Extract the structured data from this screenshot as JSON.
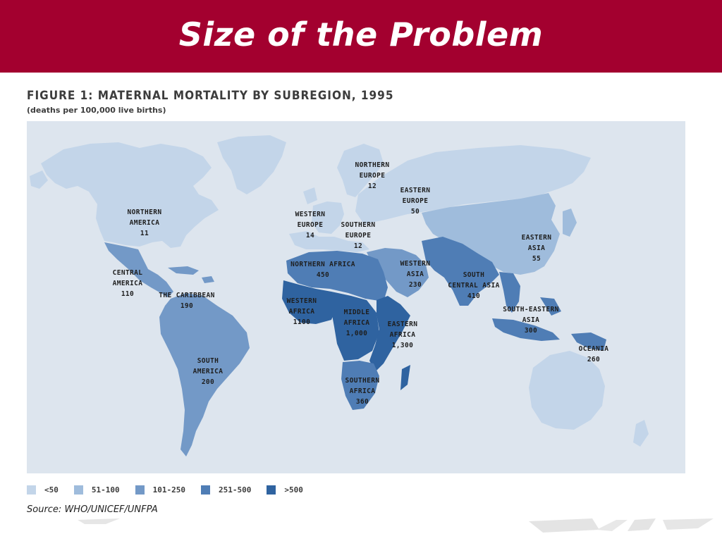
{
  "slide": {
    "title": "Size of the Problem"
  },
  "figure": {
    "title": "FIGURE 1: MATERNAL MORTALITY BY SUBREGION, 1995",
    "subtitle": "(deaths per 100,000 live births)",
    "source": "Source: WHO/UNICEF/UNFPA"
  },
  "colors": {
    "title_bar": "#a3002f",
    "ocean": "#dde5ee",
    "c1": "#c3d5e9",
    "c2": "#9fbcdc",
    "c3": "#7399c7",
    "c4": "#4f7db5",
    "c5": "#2f63a0"
  },
  "legend": [
    {
      "label": "<50",
      "color_key": "c1"
    },
    {
      "label": "51-100",
      "color_key": "c2"
    },
    {
      "label": "101-250",
      "color_key": "c3"
    },
    {
      "label": "251-500",
      "color_key": "c4"
    },
    {
      "label": ">500",
      "color_key": "c5"
    }
  ],
  "regions": [
    {
      "name": "NORTHERN AMERICA",
      "lines": [
        "NORTHERN",
        "AMERICA"
      ],
      "value": "11",
      "class": "c1"
    },
    {
      "name": "CENTRAL AMERICA",
      "lines": [
        "CENTRAL",
        "AMERICA"
      ],
      "value": "110",
      "class": "c3"
    },
    {
      "name": "THE CARIBBEAN",
      "lines": [
        "THE CARIBBEAN"
      ],
      "value": "190",
      "class": "c3"
    },
    {
      "name": "SOUTH AMERICA",
      "lines": [
        "SOUTH",
        "AMERICA"
      ],
      "value": "200",
      "class": "c3"
    },
    {
      "name": "NORTHERN EUROPE",
      "lines": [
        "NORTHERN",
        "EUROPE"
      ],
      "value": "12",
      "class": "c1"
    },
    {
      "name": "WESTERN EUROPE",
      "lines": [
        "WESTERN",
        "EUROPE"
      ],
      "value": "14",
      "class": "c1"
    },
    {
      "name": "SOUTHERN EUROPE",
      "lines": [
        "SOUTHERN",
        "EUROPE"
      ],
      "value": "12",
      "class": "c1"
    },
    {
      "name": "EASTERN EUROPE",
      "lines": [
        "EASTERN",
        "EUROPE"
      ],
      "value": "50",
      "class": "c1"
    },
    {
      "name": "NORTHERN AFRICA",
      "lines": [
        "NORTHERN AFRICA"
      ],
      "value": "450",
      "class": "c4"
    },
    {
      "name": "WESTERN AFRICA",
      "lines": [
        "WESTERN",
        "AFRICA"
      ],
      "value": "1100",
      "class": "c5"
    },
    {
      "name": "MIDDLE AFRICA",
      "lines": [
        "MIDDLE",
        "AFRICA"
      ],
      "value": "1,000",
      "class": "c5"
    },
    {
      "name": "EASTERN AFRICA",
      "lines": [
        "EASTERN",
        "AFRICA"
      ],
      "value": "1,300",
      "class": "c5"
    },
    {
      "name": "SOUTHERN AFRICA",
      "lines": [
        "SOUTHERN",
        "AFRICA"
      ],
      "value": "360",
      "class": "c4"
    },
    {
      "name": "WESTERN ASIA",
      "lines": [
        "WESTERN",
        "ASIA"
      ],
      "value": "230",
      "class": "c3"
    },
    {
      "name": "SOUTH CENTRAL ASIA",
      "lines": [
        "SOUTH",
        "CENTRAL ASIA"
      ],
      "value": "410",
      "class": "c4"
    },
    {
      "name": "EASTERN ASIA",
      "lines": [
        "EASTERN",
        "ASIA"
      ],
      "value": "55",
      "class": "c2"
    },
    {
      "name": "SOUTH-EASTERN ASIA",
      "lines": [
        "SOUTH-EASTERN",
        "ASIA"
      ],
      "value": "300",
      "class": "c4"
    },
    {
      "name": "OCEANIA",
      "lines": [
        "OCEANIA"
      ],
      "value": "260",
      "class": "c4"
    }
  ]
}
